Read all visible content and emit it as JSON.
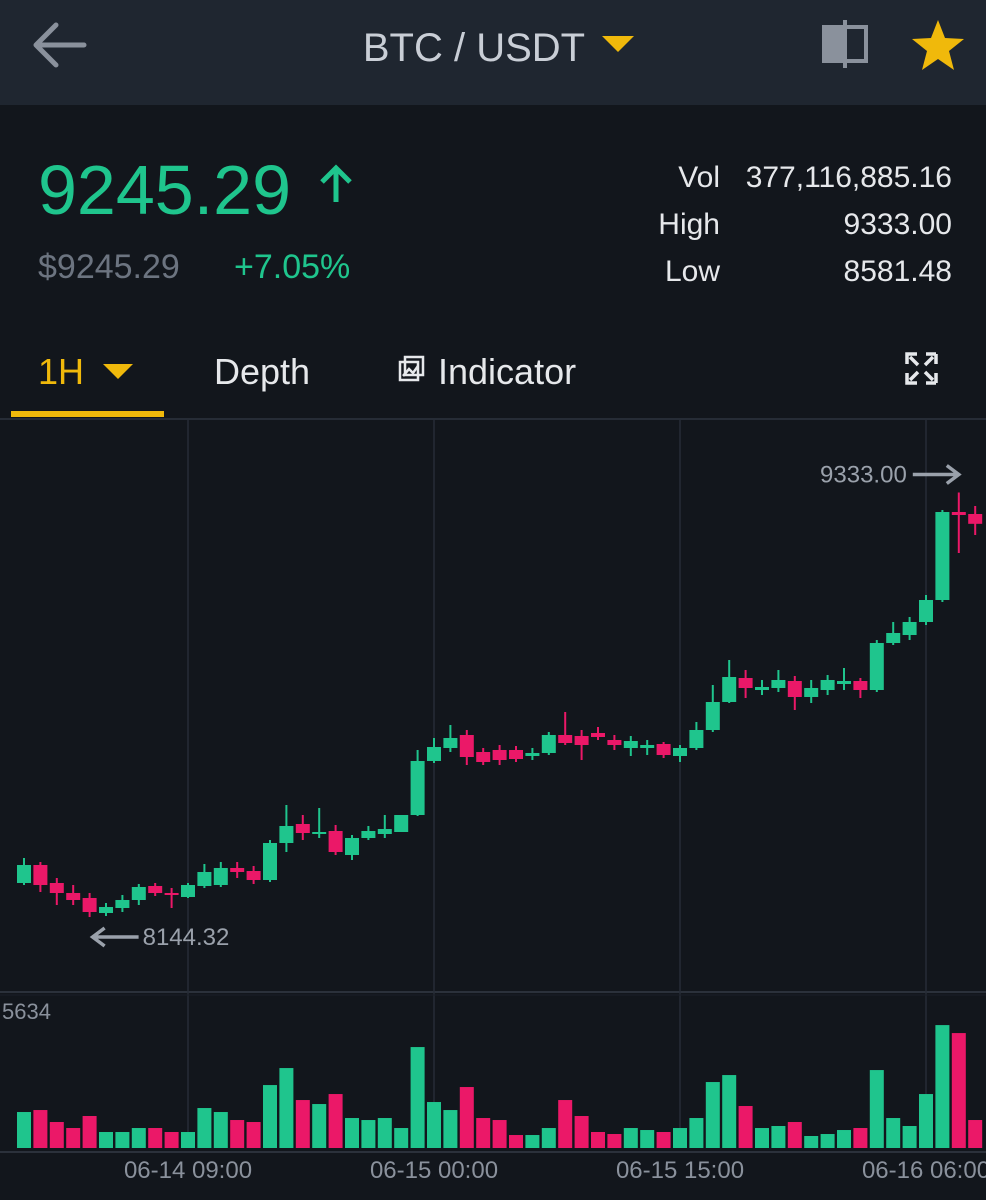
{
  "header": {
    "pair": "BTC / USDT"
  },
  "ticker": {
    "price": "9245.29",
    "usd_price": "$9245.29",
    "change": "+7.05%",
    "stats": [
      {
        "label": "Vol",
        "value": "377,116,885.16"
      },
      {
        "label": "High",
        "value": "9333.00"
      },
      {
        "label": "Low",
        "value": "8581.48"
      }
    ]
  },
  "tabs": [
    "1H",
    "Depth",
    "Indicator"
  ],
  "chart_data": {
    "type": "candlestick",
    "x": [
      null,
      null,
      null,
      null,
      null,
      null,
      null,
      null,
      null,
      null,
      "06-14 09:00",
      null,
      null,
      null,
      null,
      null,
      null,
      null,
      null,
      null,
      null,
      null,
      null,
      null,
      null,
      "06-15 00:00",
      null,
      null,
      null,
      null,
      null,
      null,
      null,
      null,
      null,
      null,
      null,
      null,
      null,
      null,
      "06-15 15:00",
      null,
      null,
      null,
      null,
      null,
      null,
      null,
      null,
      null,
      null,
      null,
      null,
      null,
      null,
      "06-16 06:00",
      null,
      null,
      null
    ],
    "open": [
      8239.6,
      8290,
      8239.6,
      8211.6,
      8197.6,
      8155.6,
      8169.6,
      8192,
      8231.2,
      8211.6,
      8200.4,
      8231.2,
      8234,
      8281.6,
      8273.2,
      8248,
      8351.6,
      8404.8,
      8376.8,
      8385.2,
      8318,
      8365.6,
      8376.8,
      8382.4,
      8430,
      8581.2,
      8617.6,
      8654,
      8606.4,
      8612,
      8612,
      8595.2,
      8603.6,
      8654,
      8651.2,
      8659.6,
      8640,
      8617.6,
      8617.6,
      8628.8,
      8595.2,
      8617.6,
      8668,
      8746.4,
      8813.6,
      8780,
      8785.6,
      8805.2,
      8760.4,
      8780,
      8796.8,
      8805.2,
      8780,
      8911.6,
      8934,
      8970.4,
      9032,
      9278.4,
      9272.8
    ],
    "high": [
      8309.6,
      8298.4,
      8253.6,
      8234,
      8211.6,
      8183.6,
      8206,
      8236.8,
      8239.6,
      8225.6,
      8239.6,
      8292.8,
      8298.4,
      8298.4,
      8287.2,
      8360,
      8458,
      8430,
      8449.6,
      8402,
      8374,
      8399.2,
      8430,
      8430,
      8612,
      8645.6,
      8682,
      8668,
      8617.6,
      8626,
      8623.2,
      8617.6,
      8662.4,
      8718.4,
      8668,
      8676.4,
      8654,
      8651.2,
      8640,
      8634.4,
      8626,
      8690.4,
      8794,
      8864,
      8836,
      8808,
      8836,
      8819.2,
      8808,
      8822,
      8841.6,
      8813.6,
      8920,
      8970.4,
      8984.4,
      9046,
      9284,
      9333.0,
      9295.2
    ],
    "low": [
      8234,
      8214.4,
      8178,
      8178,
      8144.32,
      8147.2,
      8158.4,
      8178,
      8203.2,
      8169.6,
      8197.6,
      8225.6,
      8228.4,
      8253.6,
      8236.8,
      8242.4,
      8326.4,
      8360,
      8365.6,
      8318,
      8304,
      8360,
      8365.6,
      8382.4,
      8427.2,
      8575.6,
      8606.4,
      8570,
      8570,
      8570,
      8578.4,
      8584,
      8598,
      8626,
      8584,
      8640,
      8612,
      8595.2,
      8598,
      8589.6,
      8578.4,
      8612,
      8662.4,
      8743.6,
      8757.6,
      8766,
      8774.4,
      8724,
      8743.6,
      8766,
      8780,
      8757.6,
      8774.4,
      8906,
      8920,
      8962,
      9026.4,
      9163.6,
      9214
    ],
    "close": [
      8290,
      8234,
      8211.6,
      8192,
      8158.4,
      8172.4,
      8192,
      8228.4,
      8211.6,
      8206,
      8234,
      8270.4,
      8281.6,
      8270.4,
      8248,
      8351.6,
      8399.2,
      8379.6,
      8382.4,
      8326.4,
      8365.6,
      8385.2,
      8390.8,
      8430,
      8581.2,
      8620.4,
      8645.6,
      8592.4,
      8578.4,
      8584,
      8586.8,
      8603.6,
      8654,
      8631.6,
      8626,
      8648.4,
      8626,
      8637.2,
      8626,
      8598,
      8617.6,
      8668,
      8746.4,
      8816.4,
      8785.6,
      8788.4,
      8808,
      8760.4,
      8785.6,
      8808,
      8805.2,
      8780,
      8911.6,
      8939.6,
      8970.4,
      9032,
      9278.4,
      9270,
      9245.29
    ],
    "volume": [
      1325,
      1398,
      957,
      736,
      1178,
      589,
      589,
      736,
      736,
      589,
      589,
      1472,
      1325,
      1030,
      957,
      2318,
      2944,
      1766,
      1619,
      1987,
      1104,
      1030,
      1104,
      736,
      3717,
      1693,
      1398,
      2245,
      1104,
      1030,
      478,
      478,
      736,
      1766,
      1178,
      589,
      515,
      736,
      662,
      589,
      736,
      1104,
      2429,
      2686,
      1546,
      736,
      810,
      957,
      442,
      515,
      662,
      736,
      2870,
      1104,
      810,
      1987,
      4526,
      4232,
      1030
    ],
    "ylim": [
      7934.4,
      9536
    ],
    "vlim": [
      0,
      5634
    ],
    "vticks": [
      5634
    ],
    "high_marker": {
      "value": 9333.0,
      "label": "9333.00"
    },
    "low_marker": {
      "value": 8144.32,
      "label": "8144.32"
    },
    "up_color": "#1fc58d",
    "down_color": "#eb1868",
    "grid": true
  }
}
